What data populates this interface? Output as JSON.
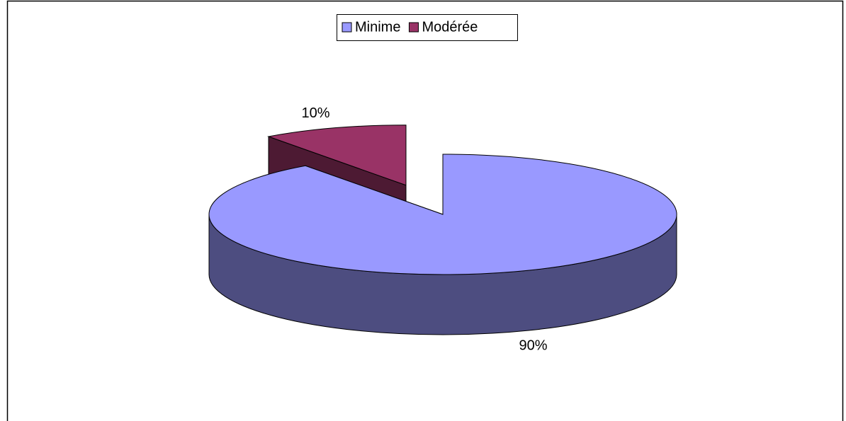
{
  "chart_data": {
    "type": "pie",
    "categories": [
      "Minime",
      "Modérée"
    ],
    "values": [
      90,
      10
    ],
    "value_labels": [
      "90%",
      "10%"
    ],
    "colors": [
      "#9999ff",
      "#993366"
    ],
    "legend": "top"
  }
}
